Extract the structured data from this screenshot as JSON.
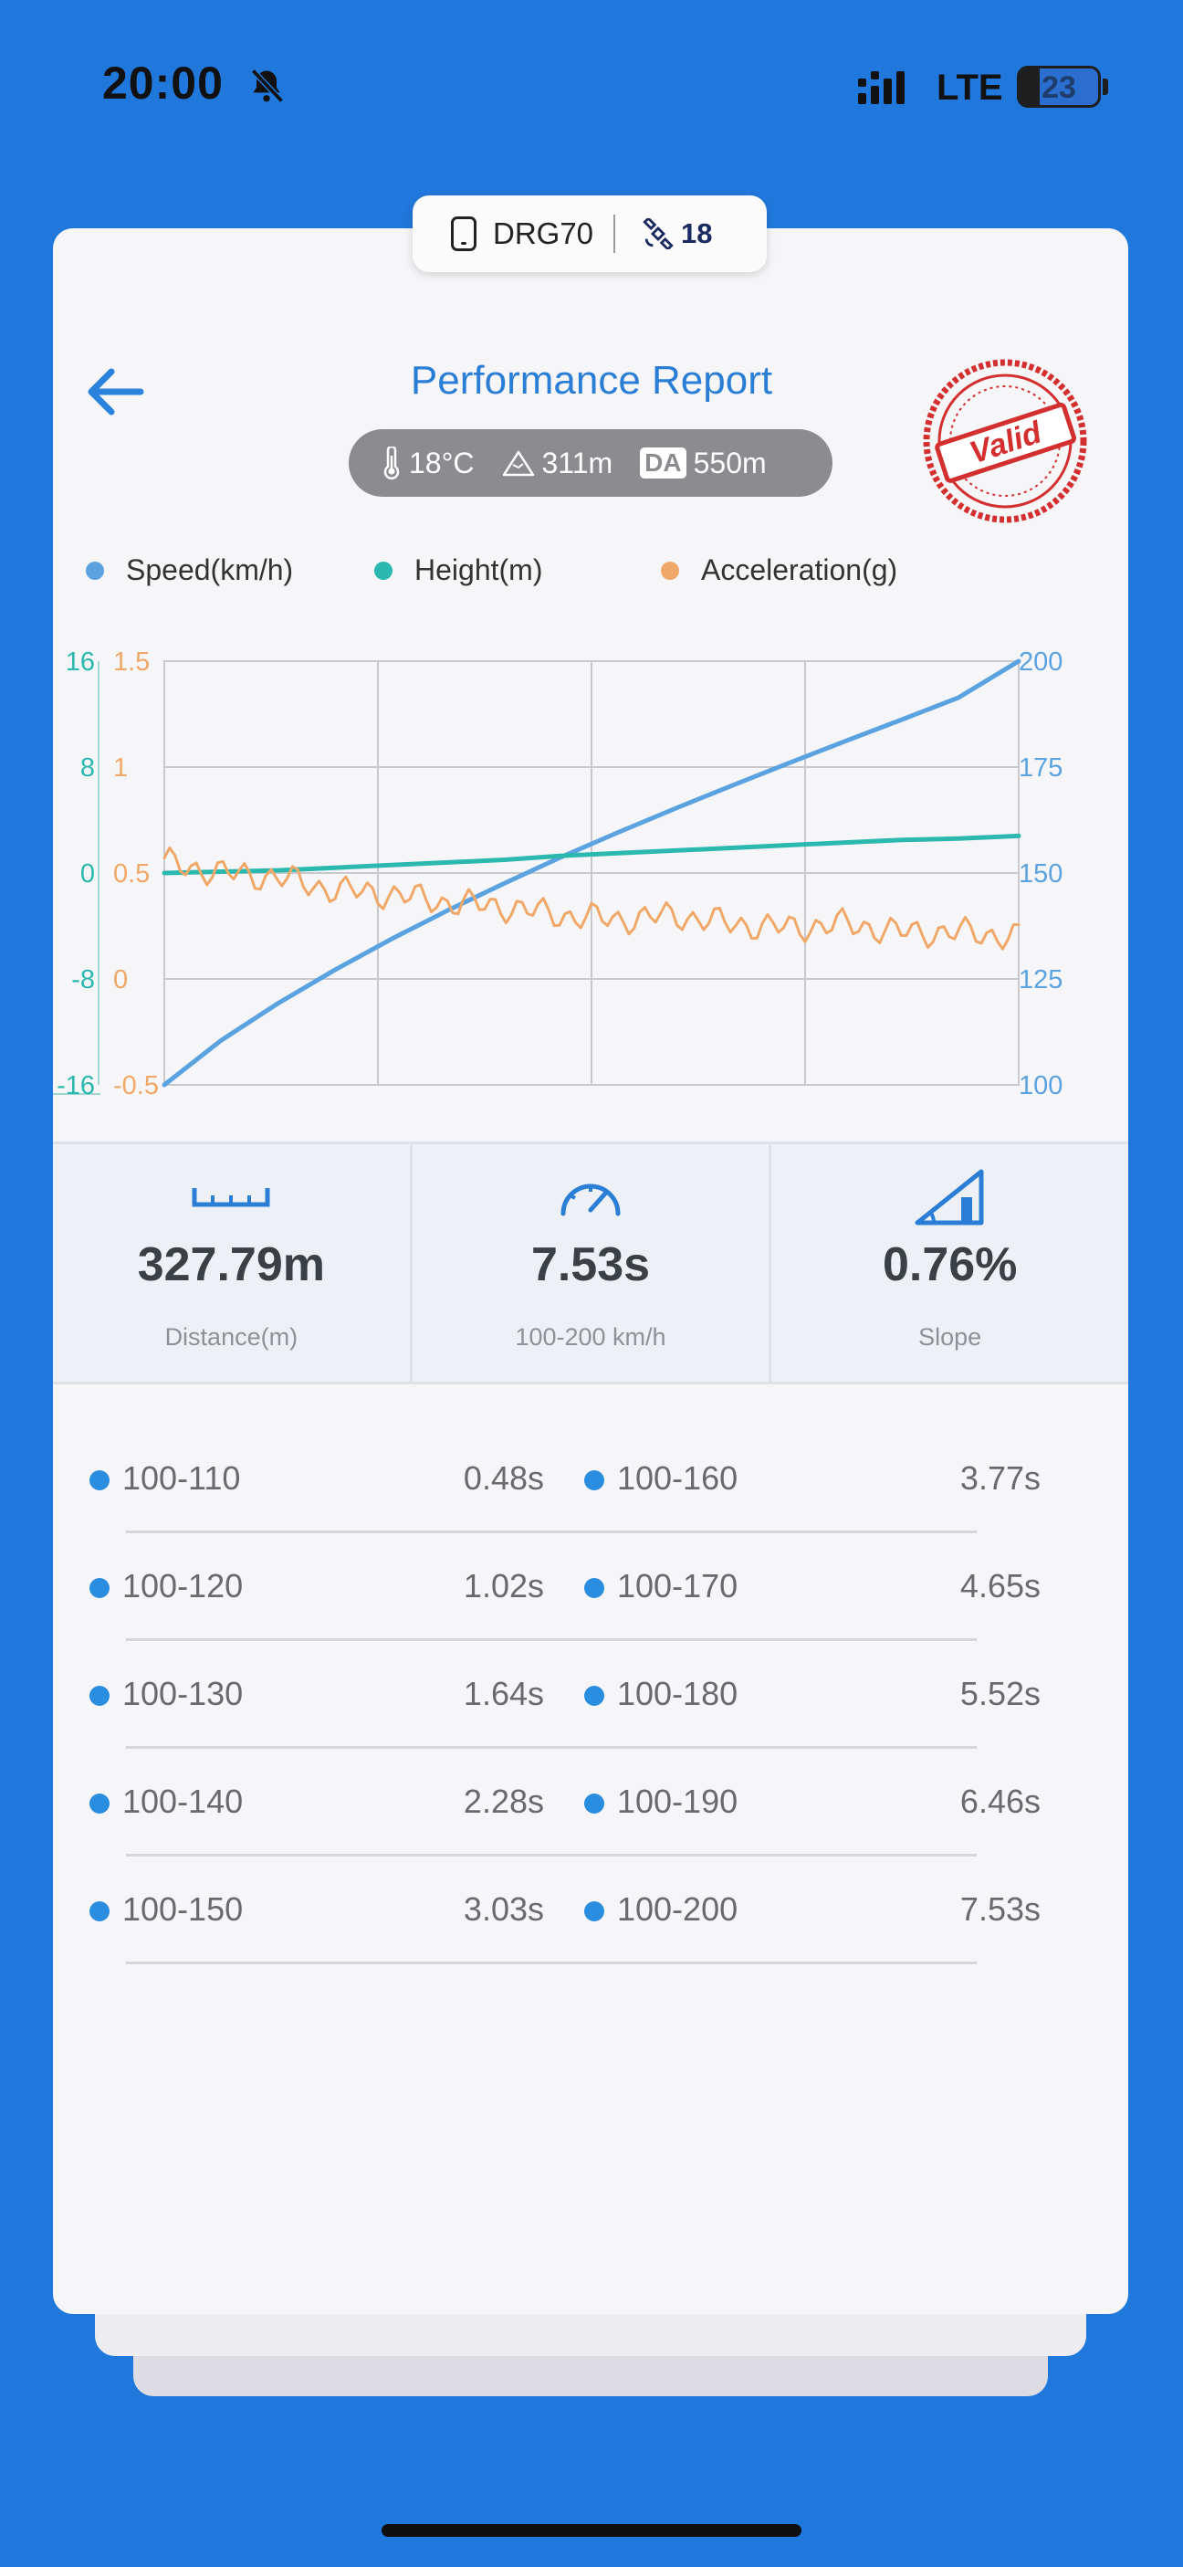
{
  "status_bar": {
    "time": "20:00",
    "network": "LTE",
    "battery": "23"
  },
  "device": {
    "name": "DRG70",
    "satellites": "18"
  },
  "header": {
    "title": "Performance Report",
    "stamp_text": "Valid"
  },
  "conditions": {
    "temperature": "18°C",
    "altitude": "311m",
    "da_label": "DA",
    "density_altitude": "550m"
  },
  "colors": {
    "speed": "#5aa3e0",
    "height": "#2bb8ae",
    "acceleration": "#f0a868",
    "accent": "#2a7ed6",
    "stamp": "#d42f2f"
  },
  "chart_data": {
    "type": "line",
    "legend": [
      "Speed(km/h)",
      "Height(m)",
      "Acceleration(g)"
    ],
    "axes": {
      "height_left": {
        "ticks": [
          "16",
          "8",
          "0",
          "-8",
          "-16"
        ],
        "range": [
          -16,
          16
        ]
      },
      "accel_left": {
        "ticks": [
          "1.5",
          "1",
          "0.5",
          "0",
          "-0.5"
        ],
        "range": [
          -0.5,
          1.5
        ]
      },
      "speed_right": {
        "ticks": [
          "200",
          "175",
          "150",
          "125",
          "100"
        ],
        "range": [
          100,
          200
        ]
      }
    },
    "x": [
      0,
      0.5,
      1,
      1.5,
      2,
      2.5,
      3,
      3.5,
      4,
      4.5,
      5,
      5.5,
      6,
      6.5,
      7,
      7.53
    ],
    "series": [
      {
        "name": "Speed(km/h)",
        "axis": "speed_right",
        "values": [
          100,
          110.5,
          119.2,
          127.1,
          134.4,
          141.2,
          147.6,
          153.8,
          159.6,
          165.2,
          170.6,
          175.9,
          181.1,
          186.2,
          191.4,
          200
        ]
      },
      {
        "name": "Height(m)",
        "axis": "height_left",
        "values": [
          0,
          0.1,
          0.2,
          0.4,
          0.6,
          0.8,
          1.0,
          1.3,
          1.5,
          1.7,
          1.9,
          2.1,
          2.3,
          2.5,
          2.6,
          2.8
        ]
      },
      {
        "name": "Acceleration(g)",
        "axis": "accel_left",
        "values": [
          0.55,
          0.5,
          0.48,
          0.42,
          0.4,
          0.36,
          0.34,
          0.3,
          0.28,
          0.3,
          0.26,
          0.24,
          0.26,
          0.22,
          0.22,
          0.2
        ]
      }
    ],
    "grid": true
  },
  "stats": [
    {
      "value": "327.79m",
      "label": "Distance(m)",
      "icon": "ruler-icon"
    },
    {
      "value": "7.53s",
      "label": "100-200 km/h",
      "icon": "speedometer-icon"
    },
    {
      "value": "0.76%",
      "label": "Slope",
      "icon": "slope-icon"
    }
  ],
  "splits": [
    {
      "range": "100-110",
      "time": "0.48s"
    },
    {
      "range": "100-160",
      "time": "3.77s"
    },
    {
      "range": "100-120",
      "time": "1.02s"
    },
    {
      "range": "100-170",
      "time": "4.65s"
    },
    {
      "range": "100-130",
      "time": "1.64s"
    },
    {
      "range": "100-180",
      "time": "5.52s"
    },
    {
      "range": "100-140",
      "time": "2.28s"
    },
    {
      "range": "100-190",
      "time": "6.46s"
    },
    {
      "range": "100-150",
      "time": "3.03s"
    },
    {
      "range": "100-200",
      "time": "7.53s"
    }
  ]
}
